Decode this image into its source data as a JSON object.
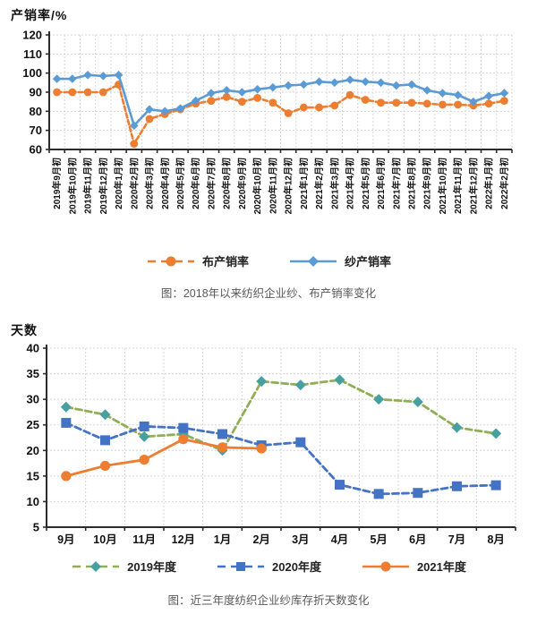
{
  "chart_data": [
    {
      "type": "line",
      "title": "产销率/%",
      "caption": "图：2018年以来纺织企业纱、布产销率变化",
      "ylim": [
        60,
        120
      ],
      "ytick_step": 10,
      "grid": true,
      "legend_position": "bottom",
      "categories": [
        "2019年9月初",
        "2019年10月初",
        "2019年11月初",
        "2019年12月初",
        "2020年1月初",
        "2020年2月初",
        "2020年3月初",
        "2020年4月初",
        "2020年5月初",
        "2020年6月初",
        "2020年7月初",
        "2020年8月初",
        "2020年9月初",
        "2020年10月初",
        "2020年11月初",
        "2020年12月初",
        "2021年1月初",
        "2021年2月初",
        "2021年3月初",
        "2021年4月初",
        "2021年5月初",
        "2021年6月初",
        "2021年7月初",
        "2021年8月初",
        "2021年9月初",
        "2021年10月初",
        "2021年11月初",
        "2021年12月初",
        "2022年1月初",
        "2022年2月初"
      ],
      "series": [
        {
          "name": "布产销率",
          "color": "#ED7D31",
          "marker": "circle",
          "marker_color": "#ED7D31",
          "line_style": "dashed",
          "values": [
            90,
            90,
            90,
            90,
            94,
            63,
            76,
            78.5,
            81,
            84,
            85.5,
            87.5,
            85,
            87,
            84.5,
            79,
            82,
            82,
            83,
            88.5,
            86,
            84.5,
            84.5,
            84.5,
            84,
            83.5,
            83.5,
            83,
            84,
            85.5
          ]
        },
        {
          "name": "纱产销率",
          "color": "#5B9BD5",
          "marker": "diamond",
          "marker_color": "#5B9BD5",
          "line_style": "solid",
          "values": [
            97,
            97,
            99,
            98.5,
            99,
            72.5,
            81,
            80,
            81.5,
            85.5,
            89.5,
            91,
            90,
            91.5,
            92.5,
            93.5,
            94,
            95.5,
            95,
            96.5,
            95.5,
            95,
            93.5,
            94,
            91,
            89.5,
            88.5,
            85,
            88,
            89.5
          ]
        }
      ]
    },
    {
      "type": "line",
      "title": "天数",
      "caption": "图：近三年度纺织企业纱库存折天数变化",
      "ylim": [
        5,
        40
      ],
      "ytick_step": 5,
      "grid": true,
      "legend_position": "bottom",
      "categories": [
        "9月",
        "10月",
        "11月",
        "12月",
        "1月",
        "2月",
        "3月",
        "4月",
        "5月",
        "6月",
        "7月",
        "8月"
      ],
      "series": [
        {
          "name": "2019年度",
          "color": "#8FAE56",
          "marker": "diamond",
          "marker_color": "#47A0A0",
          "line_style": "dashed",
          "values": [
            28.5,
            27,
            22.7,
            23.2,
            20,
            33.5,
            32.8,
            33.8,
            30,
            29.5,
            24.5,
            23.3
          ]
        },
        {
          "name": "2020年度",
          "color": "#4472C4",
          "marker": "square",
          "marker_color": "#4472C4",
          "line_style": "dashed",
          "values": [
            25.4,
            22,
            24.7,
            24.4,
            23.2,
            21,
            21.6,
            13.3,
            11.5,
            11.7,
            13,
            13.2
          ]
        },
        {
          "name": "2021年度",
          "color": "#ED7D31",
          "marker": "circle",
          "marker_color": "#ED7D31",
          "line_style": "solid",
          "values": [
            15,
            17,
            18.2,
            22.2,
            20.6,
            20.4,
            null,
            null,
            null,
            null,
            null,
            null
          ]
        }
      ]
    }
  ],
  "style": {
    "axis_color": "#2b2b2b",
    "grid_color": "#d6d6d6",
    "tick_label_color": "#111111"
  }
}
